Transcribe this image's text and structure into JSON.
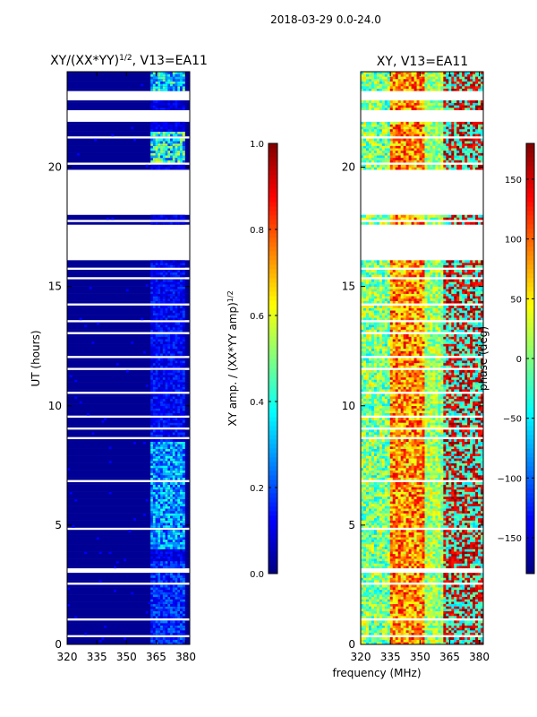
{
  "suptitle": "2018-03-29 0.0-24.0",
  "xlabel_shared": "frequency (MHz)",
  "chart_data": [
    {
      "type": "heatmap",
      "title": "XY/(XX*YY)",
      "title_sup": "1/2",
      "title_suffix": ", V13=EA11",
      "xlabel": "",
      "ylabel": "UT (hours)",
      "xlim": [
        320,
        382
      ],
      "ylim": [
        0,
        24
      ],
      "xticks": [
        320,
        335,
        350,
        365,
        380
      ],
      "yticks": [
        0,
        5,
        10,
        15,
        20
      ],
      "colorbar": {
        "label": "XY amp. / (XX*YY amp)",
        "label_sup": "1/2",
        "range": [
          0.0,
          1.0
        ],
        "ticks": [
          "0.0",
          "0.2",
          "0.4",
          "0.6",
          "0.8",
          "1.0"
        ],
        "tick_values": [
          0.0,
          0.2,
          0.4,
          0.6,
          0.8,
          1.0
        ],
        "colormap": "jet"
      },
      "value_range": [
        0.0,
        0.5
      ],
      "active_band_MHz": [
        362,
        380
      ],
      "data_gaps_hours": [
        [
          0.3,
          0.35
        ],
        [
          0.6,
          0.62
        ],
        [
          1.0,
          1.05
        ],
        [
          1.5,
          1.55
        ],
        [
          2.5,
          2.6
        ],
        [
          3.0,
          3.2
        ],
        [
          4.0,
          4.05
        ],
        [
          4.8,
          4.85
        ],
        [
          6.8,
          6.85
        ],
        [
          8.6,
          8.7
        ],
        [
          9.0,
          9.05
        ],
        [
          9.5,
          9.55
        ],
        [
          10.5,
          10.55
        ],
        [
          11.5,
          11.6
        ],
        [
          12.0,
          12.05
        ],
        [
          13.0,
          13.05
        ],
        [
          13.5,
          13.55
        ],
        [
          14.2,
          14.25
        ],
        [
          14.8,
          14.85
        ],
        [
          15.3,
          15.35
        ],
        [
          15.7,
          15.75
        ],
        [
          16.1,
          17.6
        ],
        [
          17.7,
          17.8
        ],
        [
          18.0,
          19.9
        ],
        [
          20.1,
          20.2
        ],
        [
          21.2,
          21.3
        ],
        [
          21.9,
          22.4
        ],
        [
          22.8,
          23.2
        ]
      ],
      "hot_spots": [
        {
          "t0": 20.1,
          "t1": 21.5,
          "f0": 362,
          "f1": 380,
          "level": 0.45
        },
        {
          "t0": 23.2,
          "t1": 24.0,
          "f0": 362,
          "f1": 380,
          "level": 0.4
        },
        {
          "t0": 4.0,
          "t1": 8.5,
          "f0": 362,
          "f1": 380,
          "level": 0.33
        },
        {
          "t0": 0.0,
          "t1": 3.5,
          "f0": 362,
          "f1": 380,
          "level": 0.2
        },
        {
          "t0": 8.5,
          "t1": 16.0,
          "f0": 362,
          "f1": 380,
          "level": 0.15
        }
      ]
    },
    {
      "type": "heatmap",
      "title": "XY, V13=EA11",
      "xlabel": "",
      "ylabel": "",
      "xlim": [
        320,
        382
      ],
      "ylim": [
        0,
        24
      ],
      "xticks": [
        320,
        335,
        350,
        365,
        380
      ],
      "yticks": [
        0,
        5,
        10,
        15,
        20
      ],
      "colorbar": {
        "label": "phase (deg)",
        "range": [
          -180,
          180
        ],
        "ticks": [
          "−150",
          "−100",
          "−50",
          "0",
          "50",
          "100",
          "150"
        ],
        "tick_values": [
          -150,
          -100,
          -50,
          0,
          50,
          100,
          150
        ],
        "colormap": "jet"
      },
      "value_range": [
        -180,
        180
      ],
      "data_gaps_hours": [
        [
          0.3,
          0.35
        ],
        [
          0.6,
          0.62
        ],
        [
          1.0,
          1.05
        ],
        [
          1.5,
          1.55
        ],
        [
          2.5,
          2.6
        ],
        [
          3.0,
          3.2
        ],
        [
          4.0,
          4.05
        ],
        [
          4.8,
          4.85
        ],
        [
          6.8,
          6.85
        ],
        [
          8.6,
          8.7
        ],
        [
          9.0,
          9.05
        ],
        [
          9.5,
          9.55
        ],
        [
          10.5,
          10.55
        ],
        [
          11.5,
          11.6
        ],
        [
          12.0,
          12.05
        ],
        [
          13.0,
          13.05
        ],
        [
          13.5,
          13.55
        ],
        [
          14.2,
          14.25
        ],
        [
          14.8,
          14.85
        ],
        [
          15.3,
          15.35
        ],
        [
          15.7,
          15.75
        ],
        [
          16.1,
          17.6
        ],
        [
          17.7,
          17.8
        ],
        [
          18.0,
          19.9
        ],
        [
          20.1,
          20.2
        ],
        [
          21.2,
          21.3
        ],
        [
          21.9,
          22.4
        ],
        [
          22.8,
          23.2
        ]
      ]
    }
  ]
}
